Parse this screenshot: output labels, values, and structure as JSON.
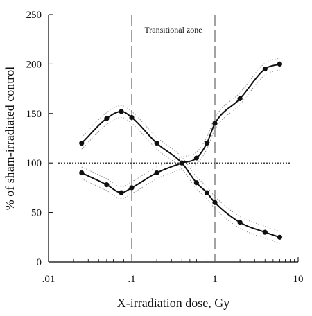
{
  "chart_data": {
    "type": "scatter",
    "xlabel": "X-irradiation dose, Gy",
    "ylabel": "% of sham-irradiated control",
    "x_scale": "log",
    "xlim": [
      0.01,
      10
    ],
    "ylim": [
      0,
      250
    ],
    "x_ticks": [
      0.01,
      0.1,
      1,
      10
    ],
    "x_tick_labels": [
      ".01",
      ".1",
      "1",
      "10"
    ],
    "y_ticks": [
      0,
      50,
      100,
      150,
      200,
      250
    ],
    "y_tick_labels": [
      "0",
      "50",
      "100",
      "150",
      "200",
      "250"
    ],
    "grid": false,
    "annotations": [
      {
        "text": "Transitional zone"
      }
    ],
    "reference_lines": [
      {
        "orientation": "horizontal",
        "value": 100,
        "style": "dotted"
      },
      {
        "orientation": "vertical",
        "value": 0.1,
        "style": "dashed"
      },
      {
        "orientation": "vertical",
        "value": 1,
        "style": "dashed"
      }
    ],
    "series": [
      {
        "x": [
          0.025,
          0.05,
          0.075,
          0.1,
          0.2,
          0.4,
          0.6,
          0.8,
          1,
          2,
          4,
          6
        ],
        "y": [
          120,
          145,
          152,
          146,
          120,
          100,
          80,
          70,
          60,
          40,
          30,
          25
        ]
      },
      {
        "x": [
          0.025,
          0.05,
          0.075,
          0.1,
          0.2,
          0.4,
          0.6,
          0.8,
          1,
          2,
          4,
          6
        ],
        "y": [
          90,
          78,
          70,
          75,
          90,
          100,
          105,
          120,
          140,
          165,
          195,
          200
        ]
      }
    ],
    "colors": {
      "points": "#111111",
      "fit": "#111111",
      "confidence": "#888888"
    }
  }
}
